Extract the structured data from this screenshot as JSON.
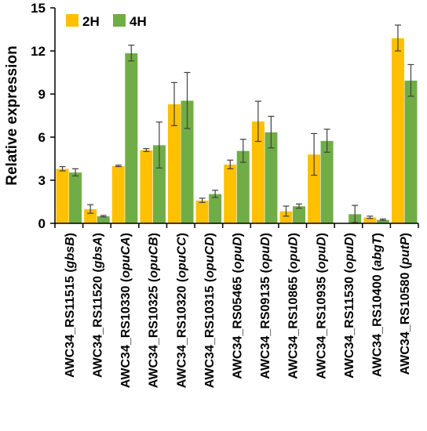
{
  "chart_data": {
    "type": "bar",
    "ylabel": "Relative expression",
    "xlabel": "",
    "ylim": [
      0,
      15
    ],
    "yticks": [
      0,
      3,
      6,
      9,
      12,
      15
    ],
    "legend_position": "top-left",
    "categories": [
      {
        "id": "AWC34_RS11515",
        "gene": "gbsB"
      },
      {
        "id": "AWC34_RS11520",
        "gene": "gbsA"
      },
      {
        "id": "AWC34_RS10330",
        "gene": "opuCA"
      },
      {
        "id": "AWC34_RS10325",
        "gene": "opuCB"
      },
      {
        "id": "AWC34_RS10320",
        "gene": "opuCC"
      },
      {
        "id": "AWC34_RS10315",
        "gene": "opuCD"
      },
      {
        "id": "AWC34_RS05465",
        "gene": "opuD"
      },
      {
        "id": "AWC34_RS09135",
        "gene": "opuD"
      },
      {
        "id": "AWC34_RS10865",
        "gene": "opuD"
      },
      {
        "id": "AWC34_RS10935",
        "gene": "opuD"
      },
      {
        "id": "AWC34_RS11530",
        "gene": "opuD"
      },
      {
        "id": "AWC34_RS10400",
        "gene": "abgT"
      },
      {
        "id": "AWC34_RS10580",
        "gene": "putP"
      }
    ],
    "series": [
      {
        "name": "2H",
        "color": "#FFC000",
        "values": [
          3.8,
          1.0,
          4.0,
          5.1,
          8.3,
          1.6,
          4.1,
          7.1,
          0.85,
          4.8,
          0.0,
          0.42,
          12.9
        ],
        "errors": [
          0.15,
          0.3,
          0.05,
          0.1,
          1.5,
          0.15,
          0.3,
          1.4,
          0.35,
          1.45,
          0.0,
          0.08,
          0.9
        ]
      },
      {
        "name": "4H",
        "color": "#70AD47",
        "values": [
          3.55,
          0.5,
          11.85,
          5.45,
          8.55,
          2.05,
          5.05,
          6.35,
          1.2,
          5.75,
          0.65,
          0.25,
          9.95
        ]
      }
    ],
    "series_errors_4h": [
      0.25,
      0.05,
      0.55,
      1.6,
      1.95,
      0.25,
      0.8,
      1.1,
      0.15,
      0.8,
      0.6,
      0.05,
      1.1
    ]
  }
}
